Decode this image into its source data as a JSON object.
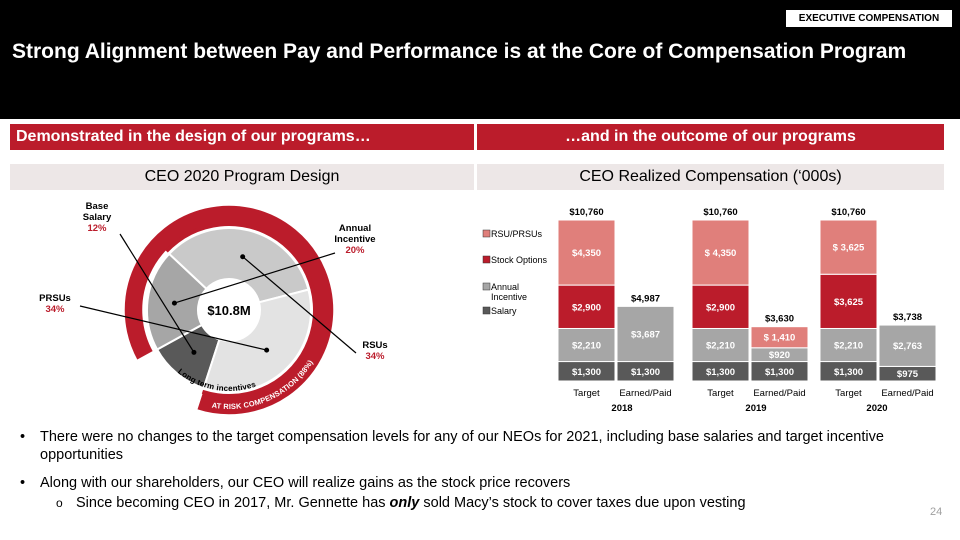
{
  "header": {
    "tag": "EXECUTIVE COMPENSATION",
    "title": "Strong Alignment between Pay and Performance is at the Core of Compensation Program"
  },
  "banners": {
    "left": "Demonstrated in the design of our programs…",
    "right": "…and in the outcome of our programs"
  },
  "subheads": {
    "left": "CEO 2020 Program Design",
    "right": "CEO Realized Compensation (‘000s)"
  },
  "bullets": {
    "b1": "There were no changes to the target compensation levels for any of our NEOs for 2021, including base salaries and target incentive opportunities",
    "b2": "Along with our shareholders, our CEO will realize gains as the stock price recovers",
    "sub_pre": "Since becoming CEO in 2017, Mr. Gennette has ",
    "sub_em": "only",
    "sub_post": " sold Macy’s stock to cover taxes due upon vesting"
  },
  "page_number": "24",
  "colors": {
    "red": "#bb1c2b",
    "pink": "#e07f7b",
    "midgrey": "#a6a6a6",
    "darkgrey": "#595959",
    "lightgrey": "#d9d9d9"
  },
  "chart_data": [
    {
      "type": "pie",
      "title": "CEO 2020 Program Design",
      "center_label": "$10.8M",
      "slices": [
        {
          "name": "Base Salary",
          "pct_label": "12%",
          "value": 12,
          "color": "#595959"
        },
        {
          "name": "Annual Incentive",
          "pct_label": "20%",
          "value": 20,
          "color": "#a6a6a6"
        },
        {
          "name": "RSUs",
          "pct_label": "34%",
          "value": 34,
          "color": "#c9c9c9"
        },
        {
          "name": "PRSUs",
          "pct_label": "34%",
          "value": 34,
          "color": "#e3e3e3"
        }
      ],
      "outer_ring_label": "AT RISK COMPENSATION (88%)",
      "outer_ring_value": 88,
      "inner_ring_label": "Long term incentives",
      "inner_ring_value": 68
    },
    {
      "type": "bar",
      "stacked": true,
      "title": "CEO Realized Compensation (‘000s)",
      "legend": [
        "RSU/PRSUs",
        "Stock Options",
        "Annual Incentive",
        "Salary"
      ],
      "groups": [
        {
          "year": "2018",
          "bars": [
            {
              "label": "Target",
              "total": "$10,760",
              "segments": [
                {
                  "name": "Salary",
                  "value": 1300,
                  "label": "$1,300"
                },
                {
                  "name": "Annual Incentive",
                  "value": 2210,
                  "label": "$2,210"
                },
                {
                  "name": "Stock Options",
                  "value": 2900,
                  "label": "$2,900"
                },
                {
                  "name": "RSU/PRSUs",
                  "value": 4350,
                  "label": "$4,350"
                }
              ]
            },
            {
              "label": "Earned/Paid",
              "total": "$4,987",
              "segments": [
                {
                  "name": "Salary",
                  "value": 1300,
                  "label": "$1,300"
                },
                {
                  "name": "Annual Incentive",
                  "value": 3687,
                  "label": "$3,687"
                }
              ]
            }
          ]
        },
        {
          "year": "2019",
          "bars": [
            {
              "label": "Target",
              "total": "$10,760",
              "segments": [
                {
                  "name": "Salary",
                  "value": 1300,
                  "label": "$1,300"
                },
                {
                  "name": "Annual Incentive",
                  "value": 2210,
                  "label": "$2,210"
                },
                {
                  "name": "Stock Options",
                  "value": 2900,
                  "label": "$2,900"
                },
                {
                  "name": "RSU/PRSUs",
                  "value": 4350,
                  "label": "$ 4,350"
                }
              ]
            },
            {
              "label": "Earned/Paid",
              "total": "$3,630",
              "segments": [
                {
                  "name": "Salary",
                  "value": 1300,
                  "label": "$1,300"
                },
                {
                  "name": "Annual Incentive",
                  "value": 920,
                  "label": "$920"
                },
                {
                  "name": "RSU/PRSUs",
                  "value": 1410,
                  "label": "$ 1,410"
                }
              ]
            }
          ]
        },
        {
          "year": "2020",
          "bars": [
            {
              "label": "Target",
              "total": "$10,760",
              "segments": [
                {
                  "name": "Salary",
                  "value": 1300,
                  "label": "$1,300"
                },
                {
                  "name": "Annual Incentive",
                  "value": 2210,
                  "label": "$2,210"
                },
                {
                  "name": "Stock Options",
                  "value": 3625,
                  "label": "$3,625"
                },
                {
                  "name": "RSU/PRSUs",
                  "value": 3625,
                  "label": "$ 3,625"
                }
              ]
            },
            {
              "label": "Earned/Paid",
              "total": "$3,738",
              "segments": [
                {
                  "name": "Salary",
                  "value": 975,
                  "label": "$975"
                },
                {
                  "name": "Annual Incentive",
                  "value": 2763,
                  "label": "$2,763"
                }
              ]
            }
          ]
        }
      ]
    }
  ]
}
